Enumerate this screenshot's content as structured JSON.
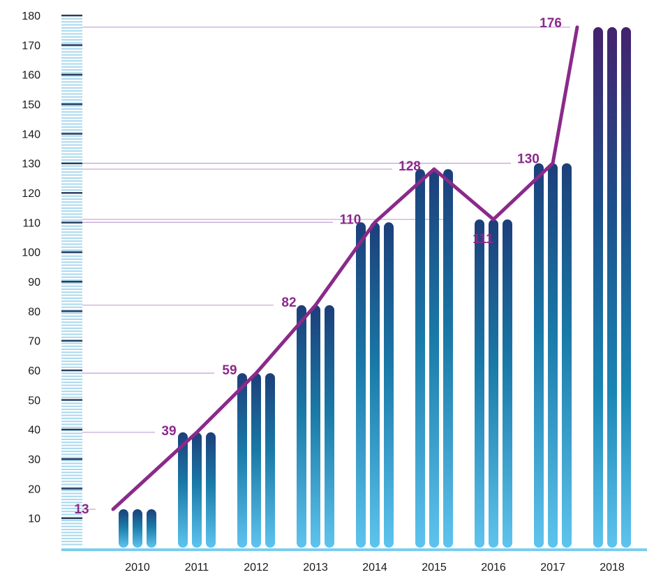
{
  "chart_data": {
    "type": "bar",
    "categories": [
      "2010",
      "2011",
      "2012",
      "2013",
      "2014",
      "2015",
      "2016",
      "2017",
      "2018"
    ],
    "values": [
      13,
      39,
      59,
      82,
      110,
      128,
      111,
      130,
      176
    ],
    "line_values": [
      13,
      39,
      59,
      82,
      110,
      128,
      111,
      130,
      176
    ],
    "data_labels": [
      "13",
      "39",
      "59",
      "82",
      "110",
      "128",
      "111",
      "130",
      "176"
    ],
    "yticks": [
      10,
      20,
      30,
      40,
      50,
      60,
      70,
      80,
      90,
      100,
      110,
      120,
      130,
      140,
      150,
      160,
      170,
      180
    ],
    "ylim": [
      0,
      180
    ],
    "title": "",
    "xlabel": "",
    "ylabel": "",
    "grid": false,
    "legend": "none",
    "colors": {
      "bar_top": "#1c3f7a",
      "bar_mid": "#1a7aa8",
      "bar_bottom": "#5ec4ee",
      "bar_top_2018": "#44226e",
      "line": "#8a2a8a",
      "guide": "#c8a8d8",
      "baseline": "#7dcdee",
      "ruler_light": "#a8d8ee",
      "ruler_dark": "#2a3a5a"
    }
  }
}
